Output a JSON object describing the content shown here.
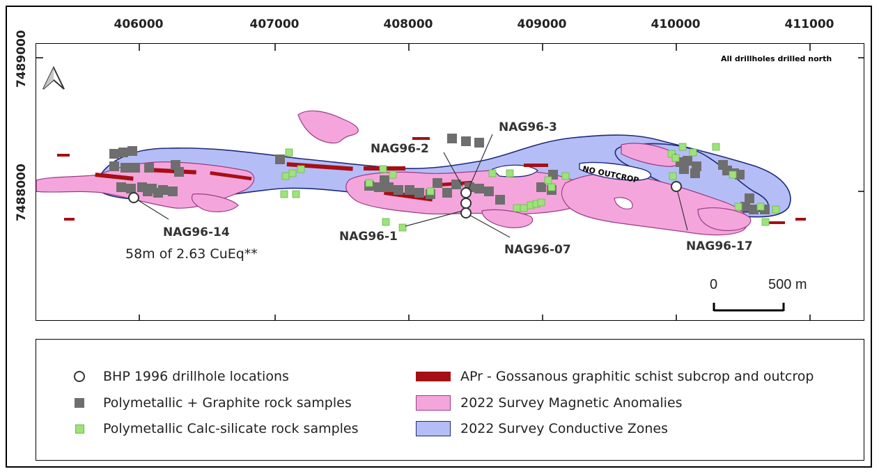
{
  "axes": {
    "x_ticks": [
      "406000",
      "407000",
      "408000",
      "409000",
      "410000",
      "411000"
    ],
    "y_ticks": [
      "7489000",
      "7488000"
    ]
  },
  "north_arrow": {
    "icon": "north-arrow-icon"
  },
  "map_note": "All drillholes drilled north",
  "no_outcrop_label": "NO OUTCROP",
  "drillholes": [
    {
      "id": "NAG96-14",
      "label": "NAG96-14"
    },
    {
      "id": "NAG96-1",
      "label": "NAG96-1"
    },
    {
      "id": "NAG96-2",
      "label": "NAG96-2"
    },
    {
      "id": "NAG96-3",
      "label": "NAG96-3"
    },
    {
      "id": "NAG96-07",
      "label": "NAG96-07"
    },
    {
      "id": "NAG96-17",
      "label": "NAG96-17"
    }
  ],
  "result_annotation": "58m of 2.63 CuEq**",
  "scale_bar": {
    "start": "0",
    "end": "500 m"
  },
  "legend": {
    "drillholes": "BHP 1996 drillhole locations",
    "poly_graphite": "Polymetallic + Graphite rock samples",
    "poly_calc": "Polymetallic Calc-silicate rock samples",
    "apr": "APr - Gossanous graphitic schist subcrop and outcrop",
    "magnetic": "2022 Survey Magnetic Anomalies",
    "conductive": "2022 Survey Conductive Zones"
  },
  "colors": {
    "magnetic_fill": "#f4a6dc",
    "magnetic_stroke": "#9a3b85",
    "conductive_fill": "#b5bdf6",
    "conductive_stroke": "#1c2a78",
    "apr": "#a50f15",
    "gray_sample": "#6e6e6e",
    "green_sample": "#9de27a"
  }
}
